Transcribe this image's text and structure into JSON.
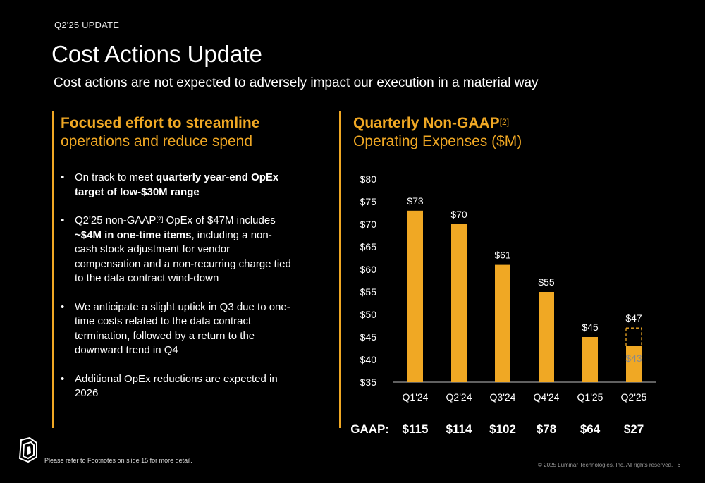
{
  "header": {
    "section_label": "Q2'25 UPDATE",
    "title": "Cost Actions Update",
    "subtitle": "Cost actions are not expected to adversely impact our execution in a material way"
  },
  "left_panel": {
    "heading_bold": "Focused effort to streamline",
    "heading_light": "operations and reduce spend",
    "bullets": [
      {
        "parts": [
          {
            "t": "On track to meet ",
            "s": "n"
          },
          {
            "t": "quarterly year-end OpEx target of low-$30M range",
            "s": "b"
          }
        ]
      },
      {
        "parts": [
          {
            "t": "Q2'25 non-GAAP",
            "s": "n"
          },
          {
            "t": "[2]",
            "s": "sup"
          },
          {
            "t": " OpEx of $47M includes ",
            "s": "n"
          },
          {
            "t": "~$4M in one-time items",
            "s": "b"
          },
          {
            "t": ", including a non-cash stock adjustment for vendor compensation and a non-recurring charge tied to the data contract wind-down",
            "s": "n"
          }
        ]
      },
      {
        "parts": [
          {
            "t": "We anticipate a slight uptick in Q3 due to one-time costs related to the data contract termination, followed by a return to the downward trend in Q4",
            "s": "n"
          }
        ]
      },
      {
        "parts": [
          {
            "t": "Additional OpEx reductions are expected in 2026",
            "s": "n"
          }
        ]
      }
    ]
  },
  "right_panel": {
    "heading_bold": "Quarterly Non-GAAP",
    "heading_sup": "[2]",
    "heading_light": "Operating Expenses ($M)"
  },
  "chart_data": {
    "type": "bar",
    "categories": [
      "Q1'24",
      "Q2'24",
      "Q3'24",
      "Q4'24",
      "Q1'25",
      "Q2'25"
    ],
    "values": [
      73,
      70,
      61,
      55,
      45,
      47
    ],
    "value_labels": [
      "$73",
      "$70",
      "$61",
      "$55",
      "$45",
      "$47"
    ],
    "adjusted": {
      "category": "Q2'25",
      "value": 43,
      "label": "$43"
    },
    "ylim": [
      35,
      80
    ],
    "y_ticks": [
      35,
      40,
      45,
      50,
      55,
      60,
      65,
      70,
      75,
      80
    ],
    "y_tick_labels": [
      "$35",
      "$40",
      "$45",
      "$50",
      "$55",
      "$60",
      "$65",
      "$70",
      "$75",
      "$80"
    ],
    "gaap_label": "GAAP:",
    "gaap_values": [
      "$115",
      "$114",
      "$102",
      "$78",
      "$64",
      "$27"
    ],
    "bar_color": "#f0a824",
    "grid": false
  },
  "footer": {
    "footnote": "Please refer to Footnotes on slide 15 for more detail.",
    "copyright": "© 2025 Luminar Technologies, Inc. All rights reserved.  |  6"
  },
  "colors": {
    "accent": "#f0a824",
    "background": "#000000",
    "text": "#ffffff"
  },
  "icons": {
    "logo": "luminar-logo-icon"
  }
}
